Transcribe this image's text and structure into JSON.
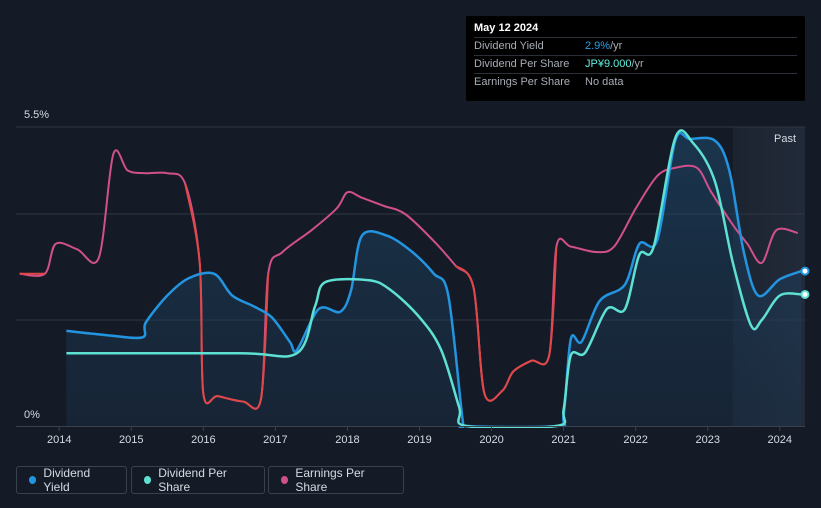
{
  "tooltip": {
    "date": "May 12 2024",
    "rows": [
      {
        "label": "Dividend Yield",
        "value": "2.9%",
        "suffix": " /yr"
      },
      {
        "label": "Dividend Per Share",
        "value": "JP¥9.000",
        "suffix": " /yr"
      },
      {
        "label": "Earnings Per Share",
        "value": "No data",
        "suffix": ""
      }
    ]
  },
  "legend": [
    {
      "label": "Dividend Yield",
      "color": "#2394df"
    },
    {
      "label": "Dividend Per Share",
      "color": "#5ee0d3"
    },
    {
      "label": "Earnings Per Share",
      "color": "#d0508a"
    }
  ],
  "chart_data": {
    "type": "line",
    "title": "",
    "xlabel": "",
    "ylabel": "",
    "ylim": [
      0,
      5.5
    ],
    "xlim": [
      2013.4,
      2024.35
    ],
    "y_top_label": "5.5%",
    "y_bottom_label": "0%",
    "past_label": "Past",
    "past_start": 2023.35,
    "x_ticks": [
      2014,
      2015,
      2016,
      2017,
      2018,
      2019,
      2020,
      2021,
      2022,
      2023,
      2024
    ],
    "gridlines": [
      1.95,
      3.9,
      5.5
    ],
    "series": [
      {
        "name": "Dividend Yield",
        "color": "#2394df",
        "points": [
          [
            2014.1,
            1.75
          ],
          [
            2014.6,
            1.68
          ],
          [
            2015.15,
            1.63
          ],
          [
            2015.2,
            1.9
          ],
          [
            2015.5,
            2.4
          ],
          [
            2015.8,
            2.72
          ],
          [
            2016.15,
            2.8
          ],
          [
            2016.4,
            2.4
          ],
          [
            2016.7,
            2.2
          ],
          [
            2016.95,
            2.0
          ],
          [
            2017.2,
            1.55
          ],
          [
            2017.3,
            1.4
          ],
          [
            2017.6,
            2.15
          ],
          [
            2017.9,
            2.1
          ],
          [
            2018.05,
            2.5
          ],
          [
            2018.2,
            3.5
          ],
          [
            2018.55,
            3.5
          ],
          [
            2018.9,
            3.2
          ],
          [
            2019.2,
            2.8
          ],
          [
            2019.4,
            2.4
          ],
          [
            2019.6,
            0.1
          ],
          [
            2019.65,
            0.0
          ],
          [
            2020.9,
            0.0
          ],
          [
            2021.0,
            0.2
          ],
          [
            2021.1,
            1.6
          ],
          [
            2021.25,
            1.55
          ],
          [
            2021.5,
            2.3
          ],
          [
            2021.85,
            2.6
          ],
          [
            2022.05,
            3.35
          ],
          [
            2022.3,
            3.42
          ],
          [
            2022.55,
            5.25
          ],
          [
            2022.75,
            5.28
          ],
          [
            2023.1,
            5.25
          ],
          [
            2023.3,
            4.7
          ],
          [
            2023.5,
            3.2
          ],
          [
            2023.7,
            2.4
          ],
          [
            2024.0,
            2.7
          ],
          [
            2024.3,
            2.85
          ]
        ]
      },
      {
        "name": "Dividend Per Share",
        "color": "#5ee0d3",
        "points": [
          [
            2014.1,
            1.34
          ],
          [
            2016.5,
            1.34
          ],
          [
            2017.3,
            1.34
          ],
          [
            2017.55,
            2.2
          ],
          [
            2017.7,
            2.65
          ],
          [
            2018.3,
            2.68
          ],
          [
            2018.6,
            2.5
          ],
          [
            2019.0,
            2.0
          ],
          [
            2019.3,
            1.4
          ],
          [
            2019.55,
            0.35
          ],
          [
            2019.65,
            0.0
          ],
          [
            2020.9,
            0.0
          ],
          [
            2021.0,
            0.3
          ],
          [
            2021.1,
            1.3
          ],
          [
            2021.3,
            1.35
          ],
          [
            2021.6,
            2.15
          ],
          [
            2021.85,
            2.15
          ],
          [
            2022.05,
            3.15
          ],
          [
            2022.25,
            3.3
          ],
          [
            2022.55,
            5.3
          ],
          [
            2022.8,
            5.2
          ],
          [
            2023.1,
            4.5
          ],
          [
            2023.35,
            3.0
          ],
          [
            2023.6,
            1.85
          ],
          [
            2023.75,
            1.95
          ],
          [
            2024.0,
            2.4
          ],
          [
            2024.3,
            2.42
          ]
        ]
      },
      {
        "name": "Earnings Per Share",
        "color": "#d0508a",
        "points": [
          [
            2013.45,
            2.8
          ],
          [
            2013.8,
            2.8
          ],
          [
            2013.95,
            3.35
          ],
          [
            2014.25,
            3.25
          ],
          [
            2014.55,
            3.1
          ],
          [
            2014.75,
            5.0
          ],
          [
            2014.95,
            4.7
          ],
          [
            2015.2,
            4.65
          ],
          [
            2015.5,
            4.65
          ],
          [
            2015.75,
            4.45
          ],
          [
            2015.95,
            3.0
          ],
          [
            2016.0,
            0.6
          ],
          [
            2016.2,
            0.55
          ],
          [
            2016.55,
            0.45
          ],
          [
            2016.8,
            0.5
          ],
          [
            2016.9,
            2.8
          ],
          [
            2017.1,
            3.2
          ],
          [
            2017.5,
            3.6
          ],
          [
            2017.85,
            4.0
          ],
          [
            2018.0,
            4.3
          ],
          [
            2018.2,
            4.2
          ],
          [
            2018.5,
            4.05
          ],
          [
            2018.8,
            3.9
          ],
          [
            2019.2,
            3.4
          ],
          [
            2019.5,
            2.95
          ],
          [
            2019.75,
            2.55
          ],
          [
            2019.9,
            0.6
          ],
          [
            2020.15,
            0.65
          ],
          [
            2020.3,
            1.0
          ],
          [
            2020.55,
            1.2
          ],
          [
            2020.8,
            1.3
          ],
          [
            2020.9,
            3.3
          ],
          [
            2021.1,
            3.3
          ],
          [
            2021.45,
            3.2
          ],
          [
            2021.7,
            3.3
          ],
          [
            2022.0,
            4.0
          ],
          [
            2022.3,
            4.6
          ],
          [
            2022.55,
            4.75
          ],
          [
            2022.85,
            4.75
          ],
          [
            2023.05,
            4.3
          ],
          [
            2023.35,
            3.7
          ],
          [
            2023.55,
            3.35
          ],
          [
            2023.75,
            3.0
          ],
          [
            2023.95,
            3.6
          ],
          [
            2024.25,
            3.55
          ]
        ]
      }
    ],
    "end_markers": [
      {
        "series": "Dividend Yield",
        "value": 2.85
      },
      {
        "series": "Dividend Per Share",
        "value": 2.42
      }
    ]
  }
}
